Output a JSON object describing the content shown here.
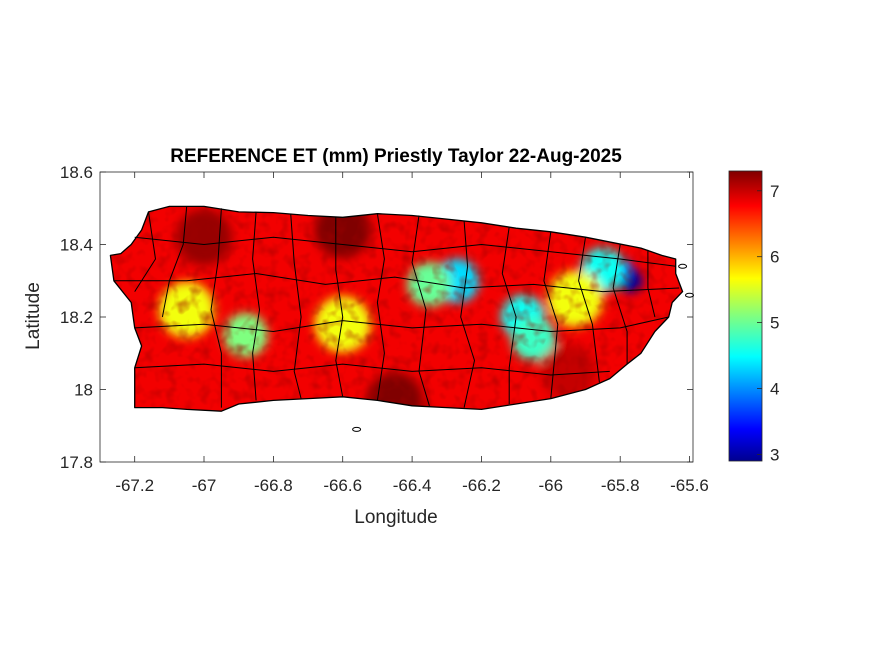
{
  "chart_data": {
    "type": "heatmap",
    "title": "REFERENCE ET (mm) Priestly Taylor 22-Aug-2025",
    "xlabel": "Longitude",
    "ylabel": "Latitude",
    "xlim": [
      -67.3,
      -65.59
    ],
    "ylim": [
      17.8,
      18.6
    ],
    "x_ticks": [
      -67.2,
      -67,
      -66.8,
      -66.6,
      -66.4,
      -66.2,
      -66,
      -65.8,
      -65.6
    ],
    "x_tick_labels": [
      "-67.2",
      "-67",
      "-66.8",
      "-66.6",
      "-66.4",
      "-66.2",
      "-66",
      "-65.8",
      "-65.6"
    ],
    "y_ticks": [
      17.8,
      18,
      18.2,
      18.4,
      18.6
    ],
    "y_tick_labels": [
      "17.8",
      "18",
      "18.2",
      "18.4",
      "18.6"
    ],
    "colorbar": {
      "colormap": "jet",
      "range": [
        2.9,
        7.3
      ],
      "ticks": [
        3,
        4,
        5,
        6,
        7
      ],
      "tick_labels": [
        "3",
        "4",
        "5",
        "6",
        "7"
      ]
    },
    "grid": false,
    "field_features": [
      {
        "lon": -65.77,
        "lat": 18.3,
        "value": 3.0
      },
      {
        "lon": -65.8,
        "lat": 18.33,
        "value": 3.6
      },
      {
        "lon": -65.85,
        "lat": 18.33,
        "value": 4.6
      },
      {
        "lon": -66.27,
        "lat": 18.3,
        "value": 4.4
      },
      {
        "lon": -66.35,
        "lat": 18.29,
        "value": 5.0
      },
      {
        "lon": -66.08,
        "lat": 18.2,
        "value": 4.6
      },
      {
        "lon": -66.05,
        "lat": 18.14,
        "value": 4.8
      },
      {
        "lon": -66.88,
        "lat": 18.15,
        "value": 5.1
      },
      {
        "lon": -66.6,
        "lat": 18.18,
        "value": 5.6
      },
      {
        "lon": -67.05,
        "lat": 18.22,
        "value": 5.6
      },
      {
        "lon": -65.93,
        "lat": 18.25,
        "value": 5.6
      },
      {
        "lon": -67.0,
        "lat": 18.42,
        "value": 7.2
      },
      {
        "lon": -66.6,
        "lat": 18.44,
        "value": 7.3
      },
      {
        "lon": -66.45,
        "lat": 17.97,
        "value": 7.3
      },
      {
        "lon": -65.95,
        "lat": 18.05,
        "value": 7.0
      }
    ],
    "background_value": 6.8
  }
}
